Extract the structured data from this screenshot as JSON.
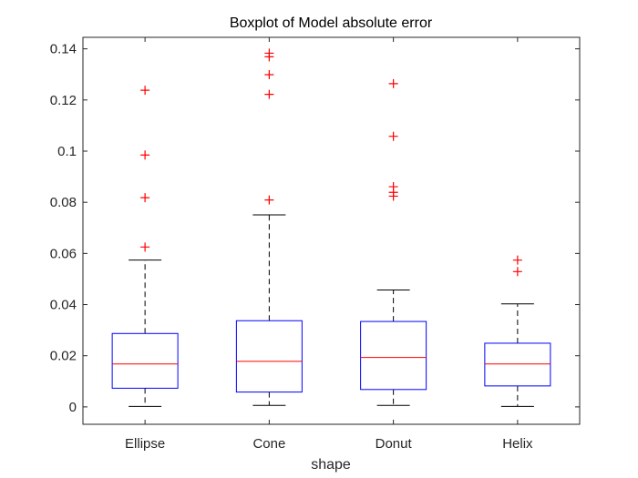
{
  "chart_data": {
    "type": "boxplot",
    "title": "Boxplot of Model absolute error",
    "xlabel": "shape",
    "ylabel": "",
    "ylim": [
      -0.0068,
      0.1445
    ],
    "yticks": [
      0,
      0.02,
      0.04,
      0.06,
      0.08,
      0.1,
      0.12,
      0.14
    ],
    "ytick_labels": [
      "0",
      "0.02",
      "0.04",
      "0.06",
      "0.08",
      "0.1",
      "0.12",
      "0.14"
    ],
    "categories": [
      "Ellipse",
      "Cone",
      "Donut",
      "Helix"
    ],
    "grid": false,
    "legend": "none",
    "colors": {
      "box": "#0000ff",
      "median": "#ff0000",
      "whisker": "#000000",
      "outlier": "#ff0000"
    },
    "boxes": [
      {
        "category": "Ellipse",
        "whisker_low": 0.0002,
        "q1": 0.0073,
        "median": 0.0168,
        "q3": 0.0287,
        "whisker_high": 0.0574,
        "outliers": [
          0.0625,
          0.0818,
          0.0985,
          0.1238
        ]
      },
      {
        "category": "Cone",
        "whisker_low": 0.0006,
        "q1": 0.0058,
        "median": 0.0178,
        "q3": 0.0337,
        "whisker_high": 0.0751,
        "outliers": [
          0.0809,
          0.1222,
          0.1299,
          0.1369,
          0.1383
        ]
      },
      {
        "category": "Donut",
        "whisker_low": 0.0006,
        "q1": 0.0068,
        "median": 0.0193,
        "q3": 0.0334,
        "whisker_high": 0.0457,
        "outliers": [
          0.0824,
          0.0839,
          0.0861,
          0.1058,
          0.1264
        ]
      },
      {
        "category": "Helix",
        "whisker_low": 0.0002,
        "q1": 0.0082,
        "median": 0.0168,
        "q3": 0.0249,
        "whisker_high": 0.0403,
        "outliers": [
          0.0529,
          0.0574
        ]
      }
    ]
  }
}
